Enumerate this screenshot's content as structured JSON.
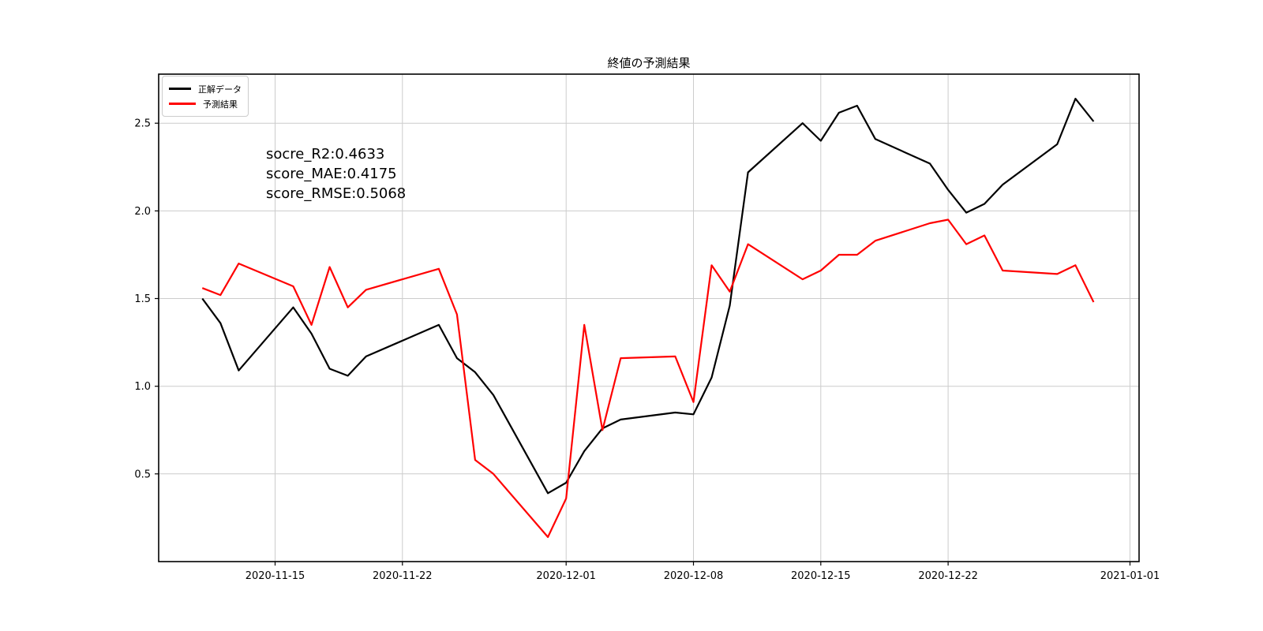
{
  "page": {
    "title": "終値の予測結果"
  },
  "chart_data": {
    "type": "line",
    "title": "終値の予測結果",
    "x_start": "2020-11-11",
    "dates": [
      "2020-11-11",
      "2020-11-12",
      "2020-11-13",
      "2020-11-16",
      "2020-11-17",
      "2020-11-18",
      "2020-11-19",
      "2020-11-20",
      "2020-11-24",
      "2020-11-25",
      "2020-11-26",
      "2020-11-27",
      "2020-11-30",
      "2020-12-01",
      "2020-12-02",
      "2020-12-03",
      "2020-12-04",
      "2020-12-07",
      "2020-12-08",
      "2020-12-09",
      "2020-12-10",
      "2020-12-11",
      "2020-12-14",
      "2020-12-15",
      "2020-12-16",
      "2020-12-17",
      "2020-12-18",
      "2020-12-21",
      "2020-12-22",
      "2020-12-23",
      "2020-12-24",
      "2020-12-25",
      "2020-12-28",
      "2020-12-29",
      "2020-12-30"
    ],
    "series": [
      {
        "name": "正解データ",
        "color": "#000000",
        "values": [
          1.5,
          1.36,
          1.09,
          1.45,
          1.3,
          1.1,
          1.06,
          1.17,
          1.35,
          1.16,
          1.08,
          0.95,
          0.39,
          0.45,
          0.63,
          0.76,
          0.81,
          0.85,
          0.84,
          1.05,
          1.46,
          2.22,
          2.5,
          2.4,
          2.56,
          2.6,
          2.41,
          2.27,
          2.12,
          1.99,
          2.04,
          2.15,
          2.38,
          2.64,
          2.51
        ]
      },
      {
        "name": "予測結果",
        "color": "#ff0000",
        "values": [
          1.56,
          1.52,
          1.7,
          1.57,
          1.35,
          1.68,
          1.45,
          1.55,
          1.67,
          1.41,
          0.58,
          0.5,
          0.14,
          0.36,
          1.35,
          0.75,
          1.16,
          1.17,
          0.91,
          1.69,
          1.54,
          1.81,
          1.61,
          1.66,
          1.75,
          1.75,
          1.83,
          1.93,
          1.95,
          1.81,
          1.86,
          1.66,
          1.64,
          1.69,
          1.48
        ]
      }
    ],
    "annotations": [
      "socre_R2:0.4633",
      "score_MAE:0.4175",
      "score_RMSE:0.5068"
    ],
    "x_tick_labels": [
      "2020-11-15",
      "2020-11-22",
      "2020-12-01",
      "2020-12-08",
      "2020-12-15",
      "2020-12-22",
      "2021-01-01"
    ],
    "y_tick_labels": [
      "0.5",
      "1.0",
      "1.5",
      "2.0",
      "2.5"
    ],
    "xlim_days": [
      -2.4,
      51.5
    ],
    "ylim": [
      0.0,
      2.78
    ],
    "grid": true,
    "grid_color": "#cccccc",
    "legend_position": "upper left",
    "background": "#ffffff"
  }
}
